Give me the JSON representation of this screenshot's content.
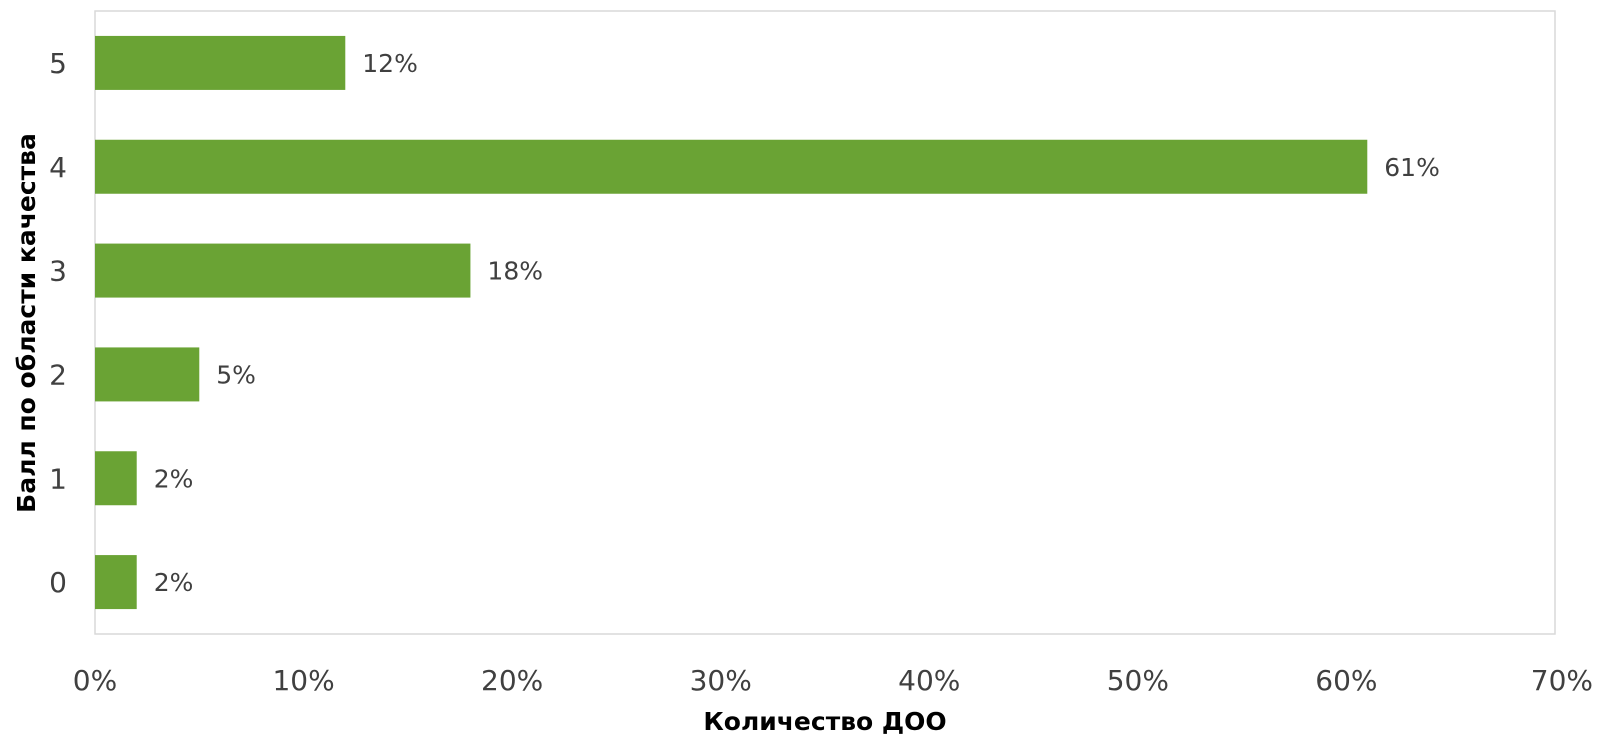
{
  "chart_data": {
    "type": "bar",
    "orientation": "horizontal",
    "xlabel": "Количество ДОО",
    "ylabel": "Балл по области качества",
    "categories": [
      "0",
      "1",
      "2",
      "3",
      "4",
      "5"
    ],
    "values": [
      2,
      2,
      5,
      18,
      61,
      12
    ],
    "data_labels": [
      "2%",
      "2%",
      "5%",
      "18%",
      "61%",
      "12%"
    ],
    "xlim": [
      0,
      70
    ],
    "xticks": [
      "0%",
      "10%",
      "20%",
      "30%",
      "40%",
      "50%",
      "60%",
      "70%"
    ],
    "grid": false,
    "legend": "none",
    "bar_color": "#6aa334",
    "border_color": "#d9d9d9"
  }
}
